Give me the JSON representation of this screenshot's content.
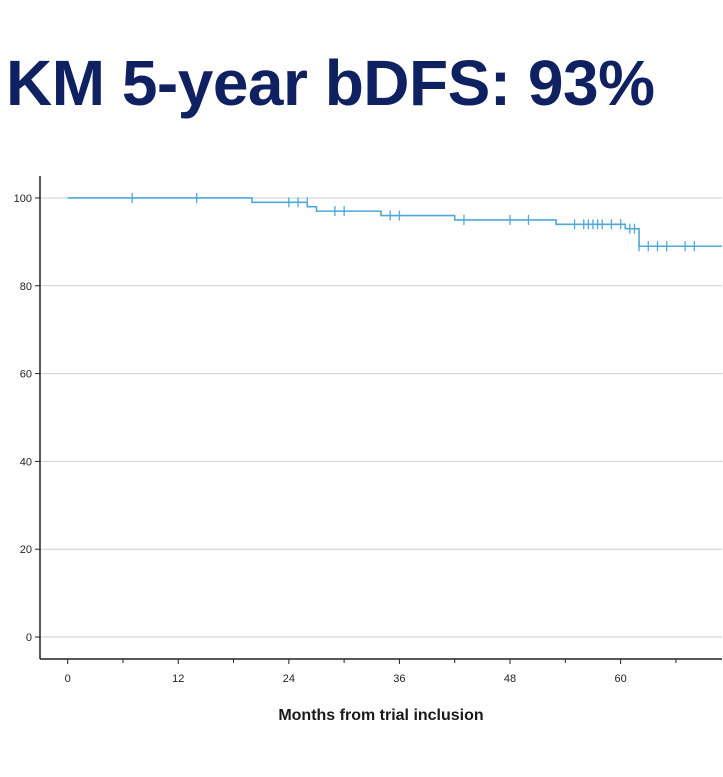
{
  "title": "KM 5-year bDFS: 93%",
  "chart_data": {
    "type": "line",
    "title": "KM 5-year bDFS: 93%",
    "xlabel": "Months from trial inclusion",
    "ylabel": "",
    "xlim": [
      -3,
      71
    ],
    "ylim": [
      -5,
      105
    ],
    "x_ticks": [
      0,
      12,
      24,
      36,
      48,
      60
    ],
    "x_minor_ticks": [
      6,
      18,
      30,
      42,
      54,
      66
    ],
    "y_ticks": [
      0,
      20,
      40,
      60,
      80,
      100
    ],
    "grid": "horizontal",
    "legend": "none",
    "color": "#4fa8d8",
    "series": [
      {
        "steps": [
          [
            0,
            100
          ],
          [
            20,
            99
          ],
          [
            26,
            98
          ],
          [
            27,
            97
          ],
          [
            34,
            96
          ],
          [
            42,
            95
          ],
          [
            53,
            94
          ],
          [
            60.5,
            93
          ],
          [
            62,
            89
          ],
          [
            71,
            89
          ]
        ],
        "censored": [
          [
            7,
            100
          ],
          [
            14,
            100
          ],
          [
            24,
            99
          ],
          [
            25,
            99
          ],
          [
            26,
            99
          ],
          [
            29,
            97
          ],
          [
            30,
            97
          ],
          [
            35,
            96
          ],
          [
            36,
            96
          ],
          [
            43,
            95
          ],
          [
            48,
            95
          ],
          [
            50,
            95
          ],
          [
            55,
            94
          ],
          [
            56,
            94
          ],
          [
            56.5,
            94
          ],
          [
            57,
            94
          ],
          [
            57.5,
            94
          ],
          [
            58,
            94
          ],
          [
            59,
            94
          ],
          [
            60,
            94
          ],
          [
            61,
            93
          ],
          [
            61.5,
            93
          ],
          [
            62,
            89
          ],
          [
            63,
            89
          ],
          [
            64,
            89
          ],
          [
            65,
            89
          ],
          [
            67,
            89
          ],
          [
            68,
            89
          ]
        ]
      }
    ]
  }
}
